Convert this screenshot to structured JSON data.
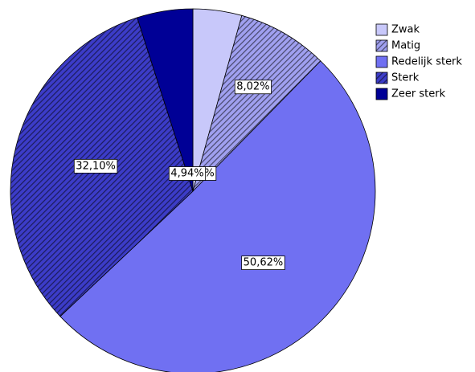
{
  "chart_data": {
    "type": "pie",
    "categories": [
      "Zwak",
      "Matig",
      "Redelijk sterk",
      "Sterk",
      "Zeer sterk"
    ],
    "values": [
      4.32,
      8.02,
      50.62,
      32.1,
      4.94
    ],
    "value_labels": [
      "4,32%",
      "8,02%",
      "50,62%",
      "32,10%",
      "4,94%"
    ],
    "colors": [
      "#c8c8fa",
      "#a0a0f0",
      "#7070f2",
      "#3c3cc8",
      "#000096"
    ],
    "hatch": [
      false,
      true,
      false,
      true,
      false
    ],
    "legend": "top-right"
  }
}
